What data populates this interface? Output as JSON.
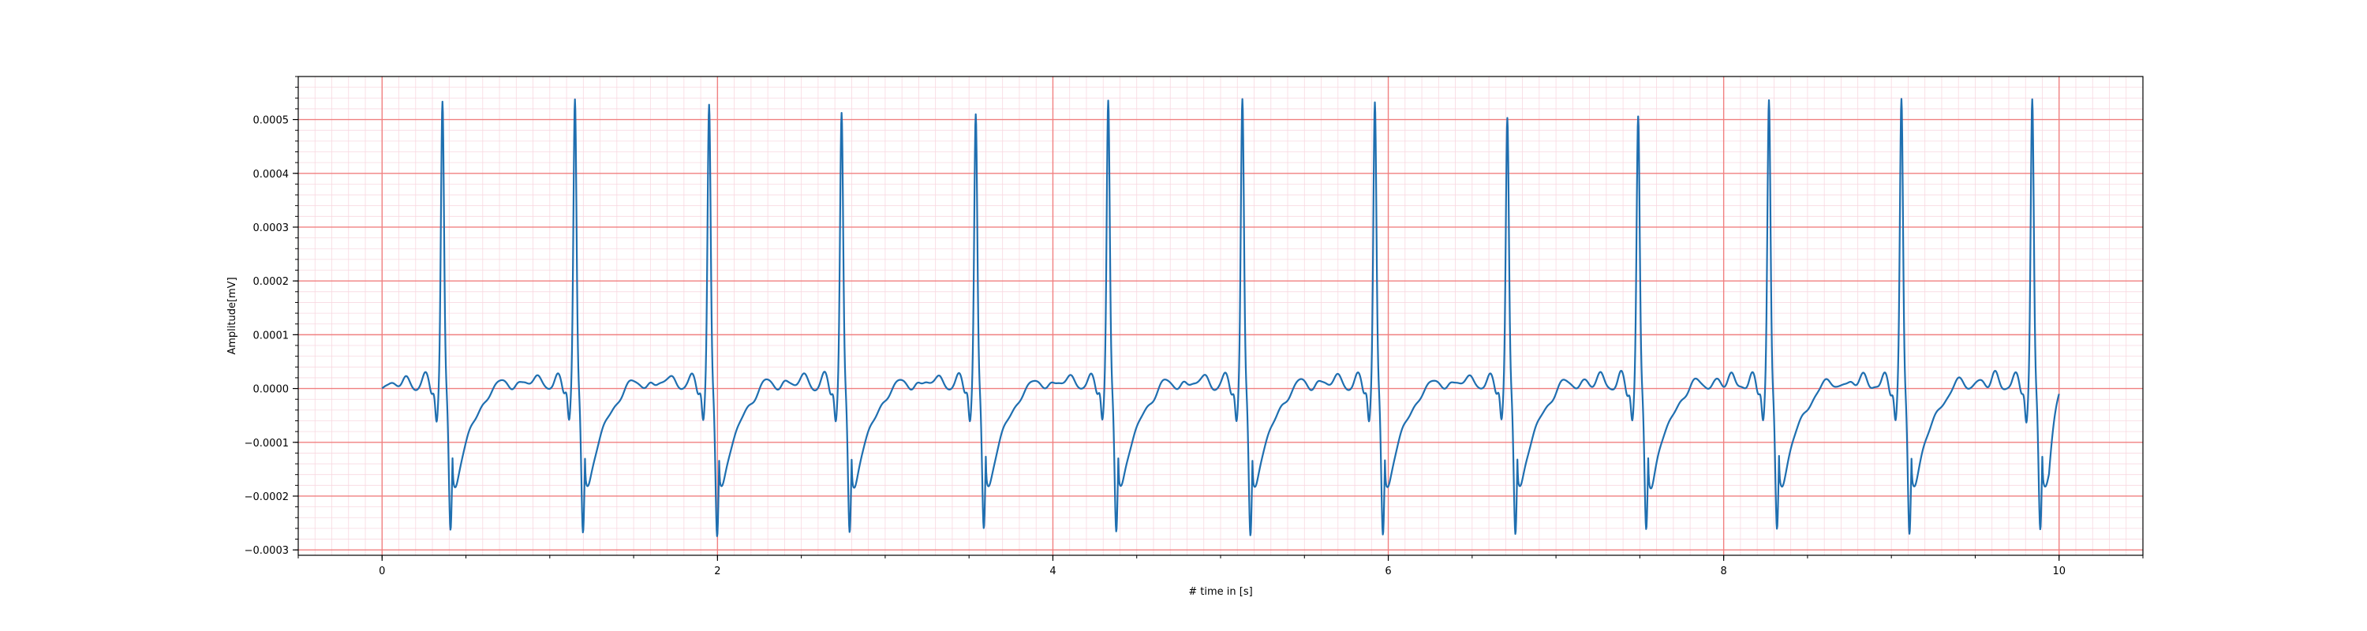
{
  "chart_data": {
    "type": "line",
    "title": "",
    "xlabel": "# time in [s]",
    "ylabel": "Amplitude[mV]",
    "xlim": [
      -0.5,
      10.5
    ],
    "ylim": [
      -0.00031,
      0.00058
    ],
    "xticks": [
      0,
      2,
      4,
      6,
      8,
      10
    ],
    "xtick_labels": [
      "0",
      "2",
      "4",
      "6",
      "8",
      "10"
    ],
    "yticks": [
      -0.0003,
      -0.0002,
      -0.0001,
      0.0,
      0.0001,
      0.0002,
      0.0003,
      0.0004,
      0.0005
    ],
    "ytick_labels": [
      "−0.0003",
      "−0.0002",
      "−0.0001",
      "0.0000",
      "0.0001",
      "0.0002",
      "0.0003",
      "0.0004",
      "0.0005"
    ],
    "grid": {
      "major": true,
      "minor": true,
      "major_color": "#f08080",
      "minor_color": "#f8d8e0"
    },
    "line_color": "#1f6fb0",
    "series": [
      {
        "name": "",
        "waveform": "ECG, 13 beats, R-peaks approx. 0.000535, S-troughs approx. -0.00026 to -0.00027",
        "beats": [
          {
            "r_time": 0.36,
            "r_amp": 0.000533,
            "s_amp": -0.000262
          },
          {
            "r_time": 1.15,
            "r_amp": 0.00054,
            "s_amp": -0.000268
          },
          {
            "r_time": 1.95,
            "r_amp": 0.000527,
            "s_amp": -0.000272
          },
          {
            "r_time": 2.74,
            "r_amp": 0.000512,
            "s_amp": -0.000266
          },
          {
            "r_time": 3.54,
            "r_amp": 0.000511,
            "s_amp": -0.00026
          },
          {
            "r_time": 4.33,
            "r_amp": 0.000536,
            "s_amp": -0.000264
          },
          {
            "r_time": 5.13,
            "r_amp": 0.000536,
            "s_amp": -0.00027
          },
          {
            "r_time": 5.92,
            "r_amp": 0.000533,
            "s_amp": -0.000272
          },
          {
            "r_time": 6.71,
            "r_amp": 0.000505,
            "s_amp": -0.00027
          },
          {
            "r_time": 7.49,
            "r_amp": 0.000506,
            "s_amp": -0.000262
          },
          {
            "r_time": 8.27,
            "r_amp": 0.000538,
            "s_amp": -0.000264
          },
          {
            "r_time": 9.06,
            "r_amp": 0.000537,
            "s_amp": -0.00027
          },
          {
            "r_time": 9.84,
            "r_amp": 0.000536,
            "s_amp": -0.000262
          }
        ],
        "start": [
          0.0,
          0.0
        ],
        "end": [
          10.0,
          -1e-05
        ]
      }
    ]
  }
}
